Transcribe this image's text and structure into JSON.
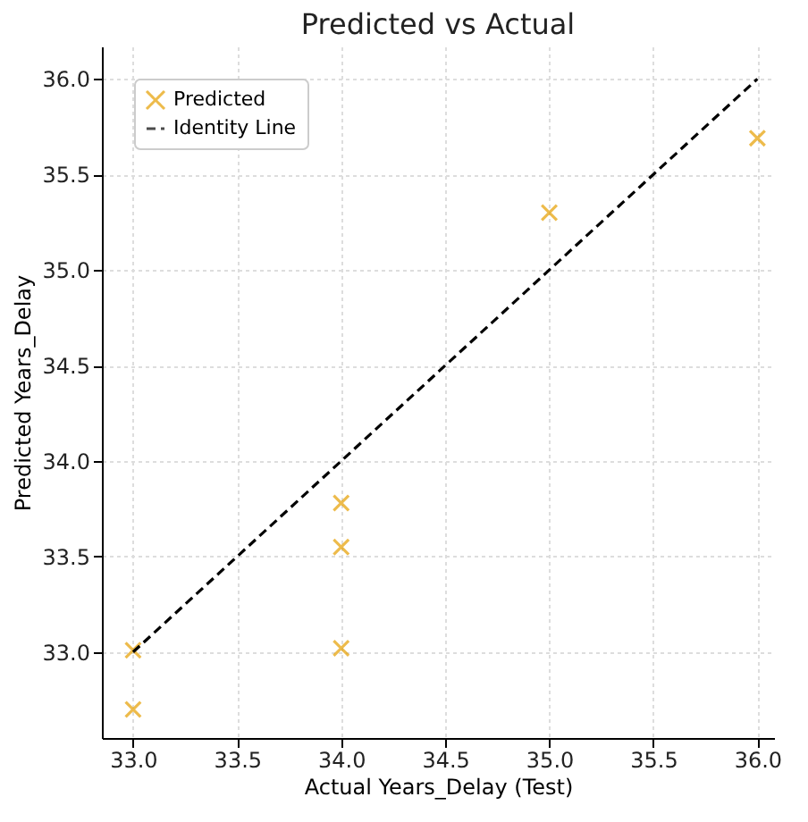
{
  "chart_data": {
    "type": "scatter",
    "title": "Predicted vs Actual",
    "xlabel": "Actual Years_Delay (Test)",
    "ylabel": "Predicted Years_Delay",
    "xlim": [
      32.85,
      36.08
    ],
    "xticks": [
      {
        "value": 33,
        "label": "33.0"
      },
      33.5,
      {
        "value": 34,
        "label": "34.0"
      },
      34.5,
      {
        "value": 35,
        "label": "35.0"
      },
      35.5,
      {
        "value": 36,
        "label": "36.0"
      }
    ],
    "ylim": [
      32.55,
      36.17
    ],
    "yticks": [
      {
        "value": 33,
        "label": "33.0"
      },
      33.5,
      {
        "value": 34,
        "label": "34.0"
      },
      34.5,
      {
        "value": 35,
        "label": "35.0"
      },
      35.5,
      {
        "value": 36,
        "label": "36.0"
      }
    ],
    "grid": true,
    "legend": "top left",
    "series": [
      {
        "name": "Predicted",
        "color": "#e69f00",
        "marker": "cross",
        "x": [
          33.0,
          33.0,
          34.0,
          34.0,
          34.0,
          35.0,
          36.0
        ],
        "values": [
          33.01,
          32.7,
          33.78,
          33.55,
          33.02,
          35.3,
          35.69
        ]
      },
      {
        "name": "Identity Line",
        "type": "line",
        "color": "#000000",
        "line_style": "dashed",
        "x": [
          33.0,
          36.0
        ],
        "values": [
          33.0,
          36.0
        ]
      }
    ]
  }
}
